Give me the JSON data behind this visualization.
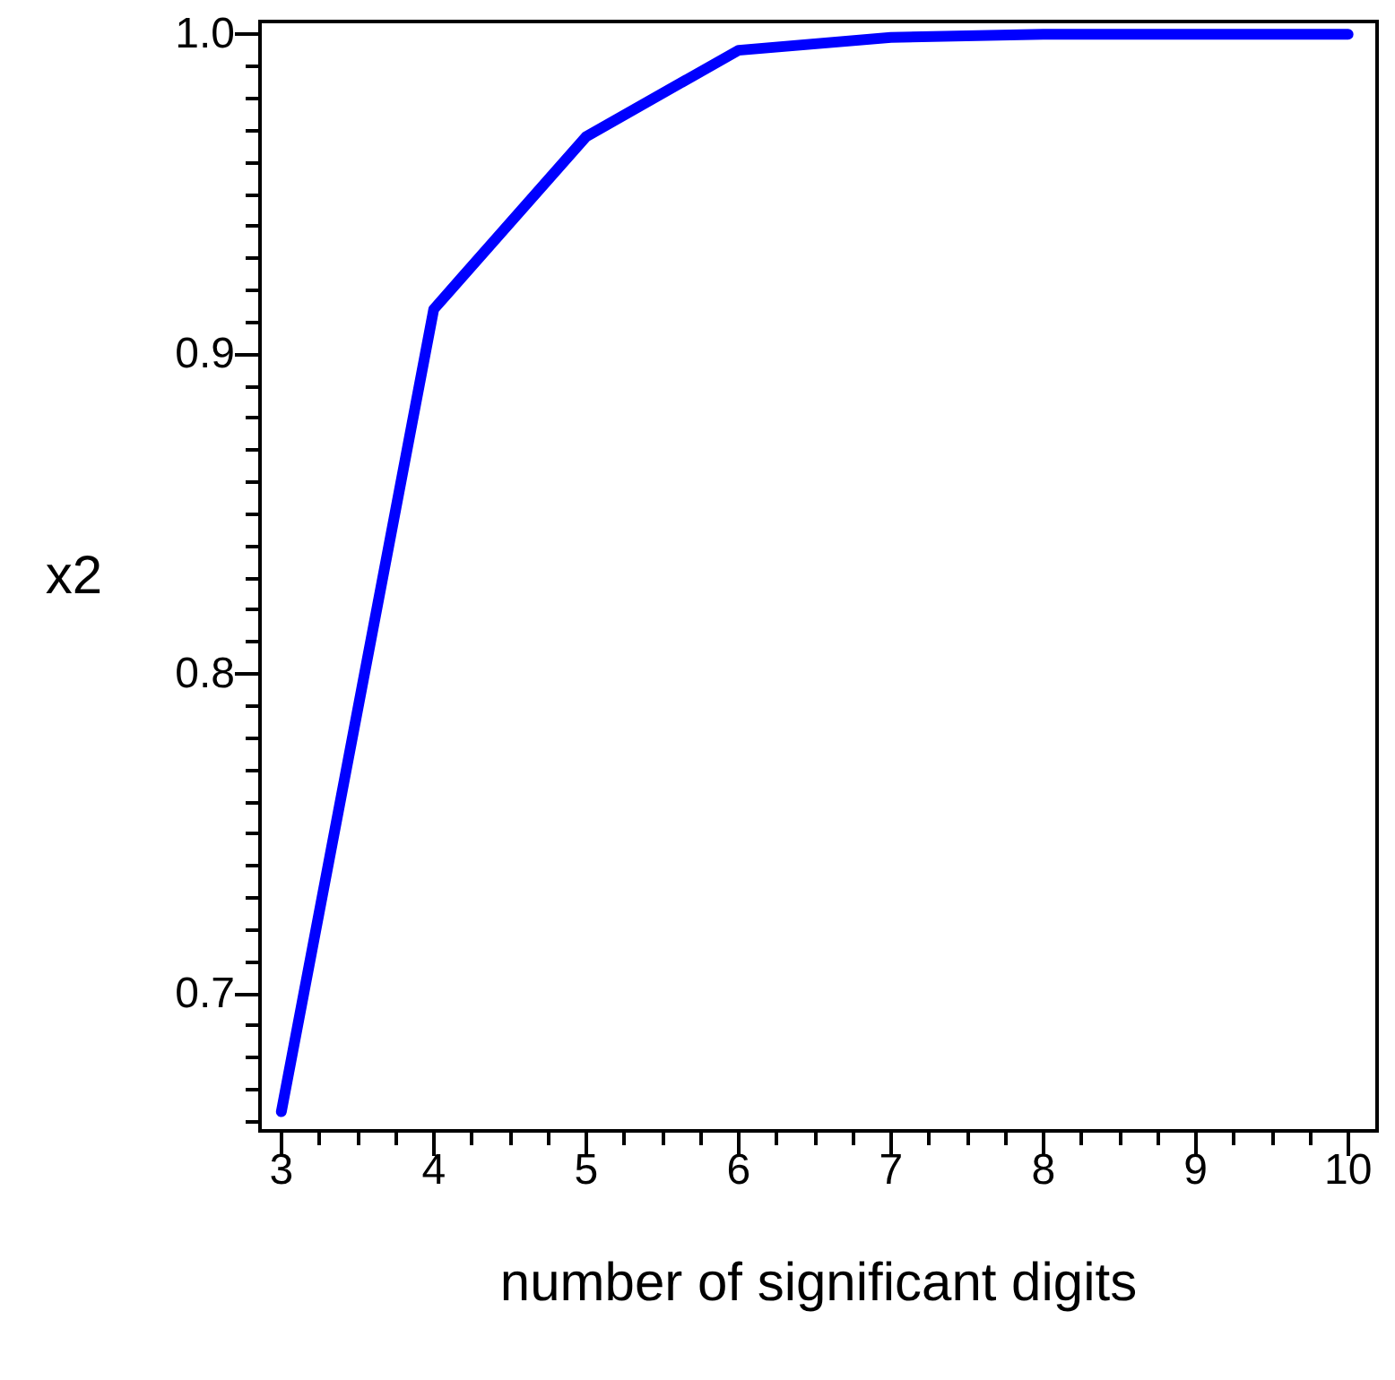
{
  "chart_data": {
    "type": "line",
    "xlabel": "number of significant digits",
    "ylabel": "x2",
    "x": [
      3,
      4,
      5,
      6,
      7,
      8,
      9,
      10
    ],
    "series": [
      {
        "color": "#0000ff",
        "values": [
          0.663,
          0.914,
          0.968,
          0.995,
          0.999,
          1.0,
          1.0,
          1.0
        ]
      }
    ],
    "xlim": [
      2.86,
      10.19
    ],
    "xticks": [
      3,
      4,
      5,
      6,
      7,
      8,
      9,
      10
    ],
    "ylim": [
      0.657,
      1.004
    ],
    "yticks": [
      {
        "value": 0.7,
        "label": "0.7"
      },
      {
        "value": 0.8,
        "label": "0.8"
      },
      {
        "value": 0.9,
        "label": "0.9"
      },
      {
        "value": 1.0,
        "label": "1.0"
      }
    ],
    "marker": "none",
    "line_style": "solid"
  }
}
